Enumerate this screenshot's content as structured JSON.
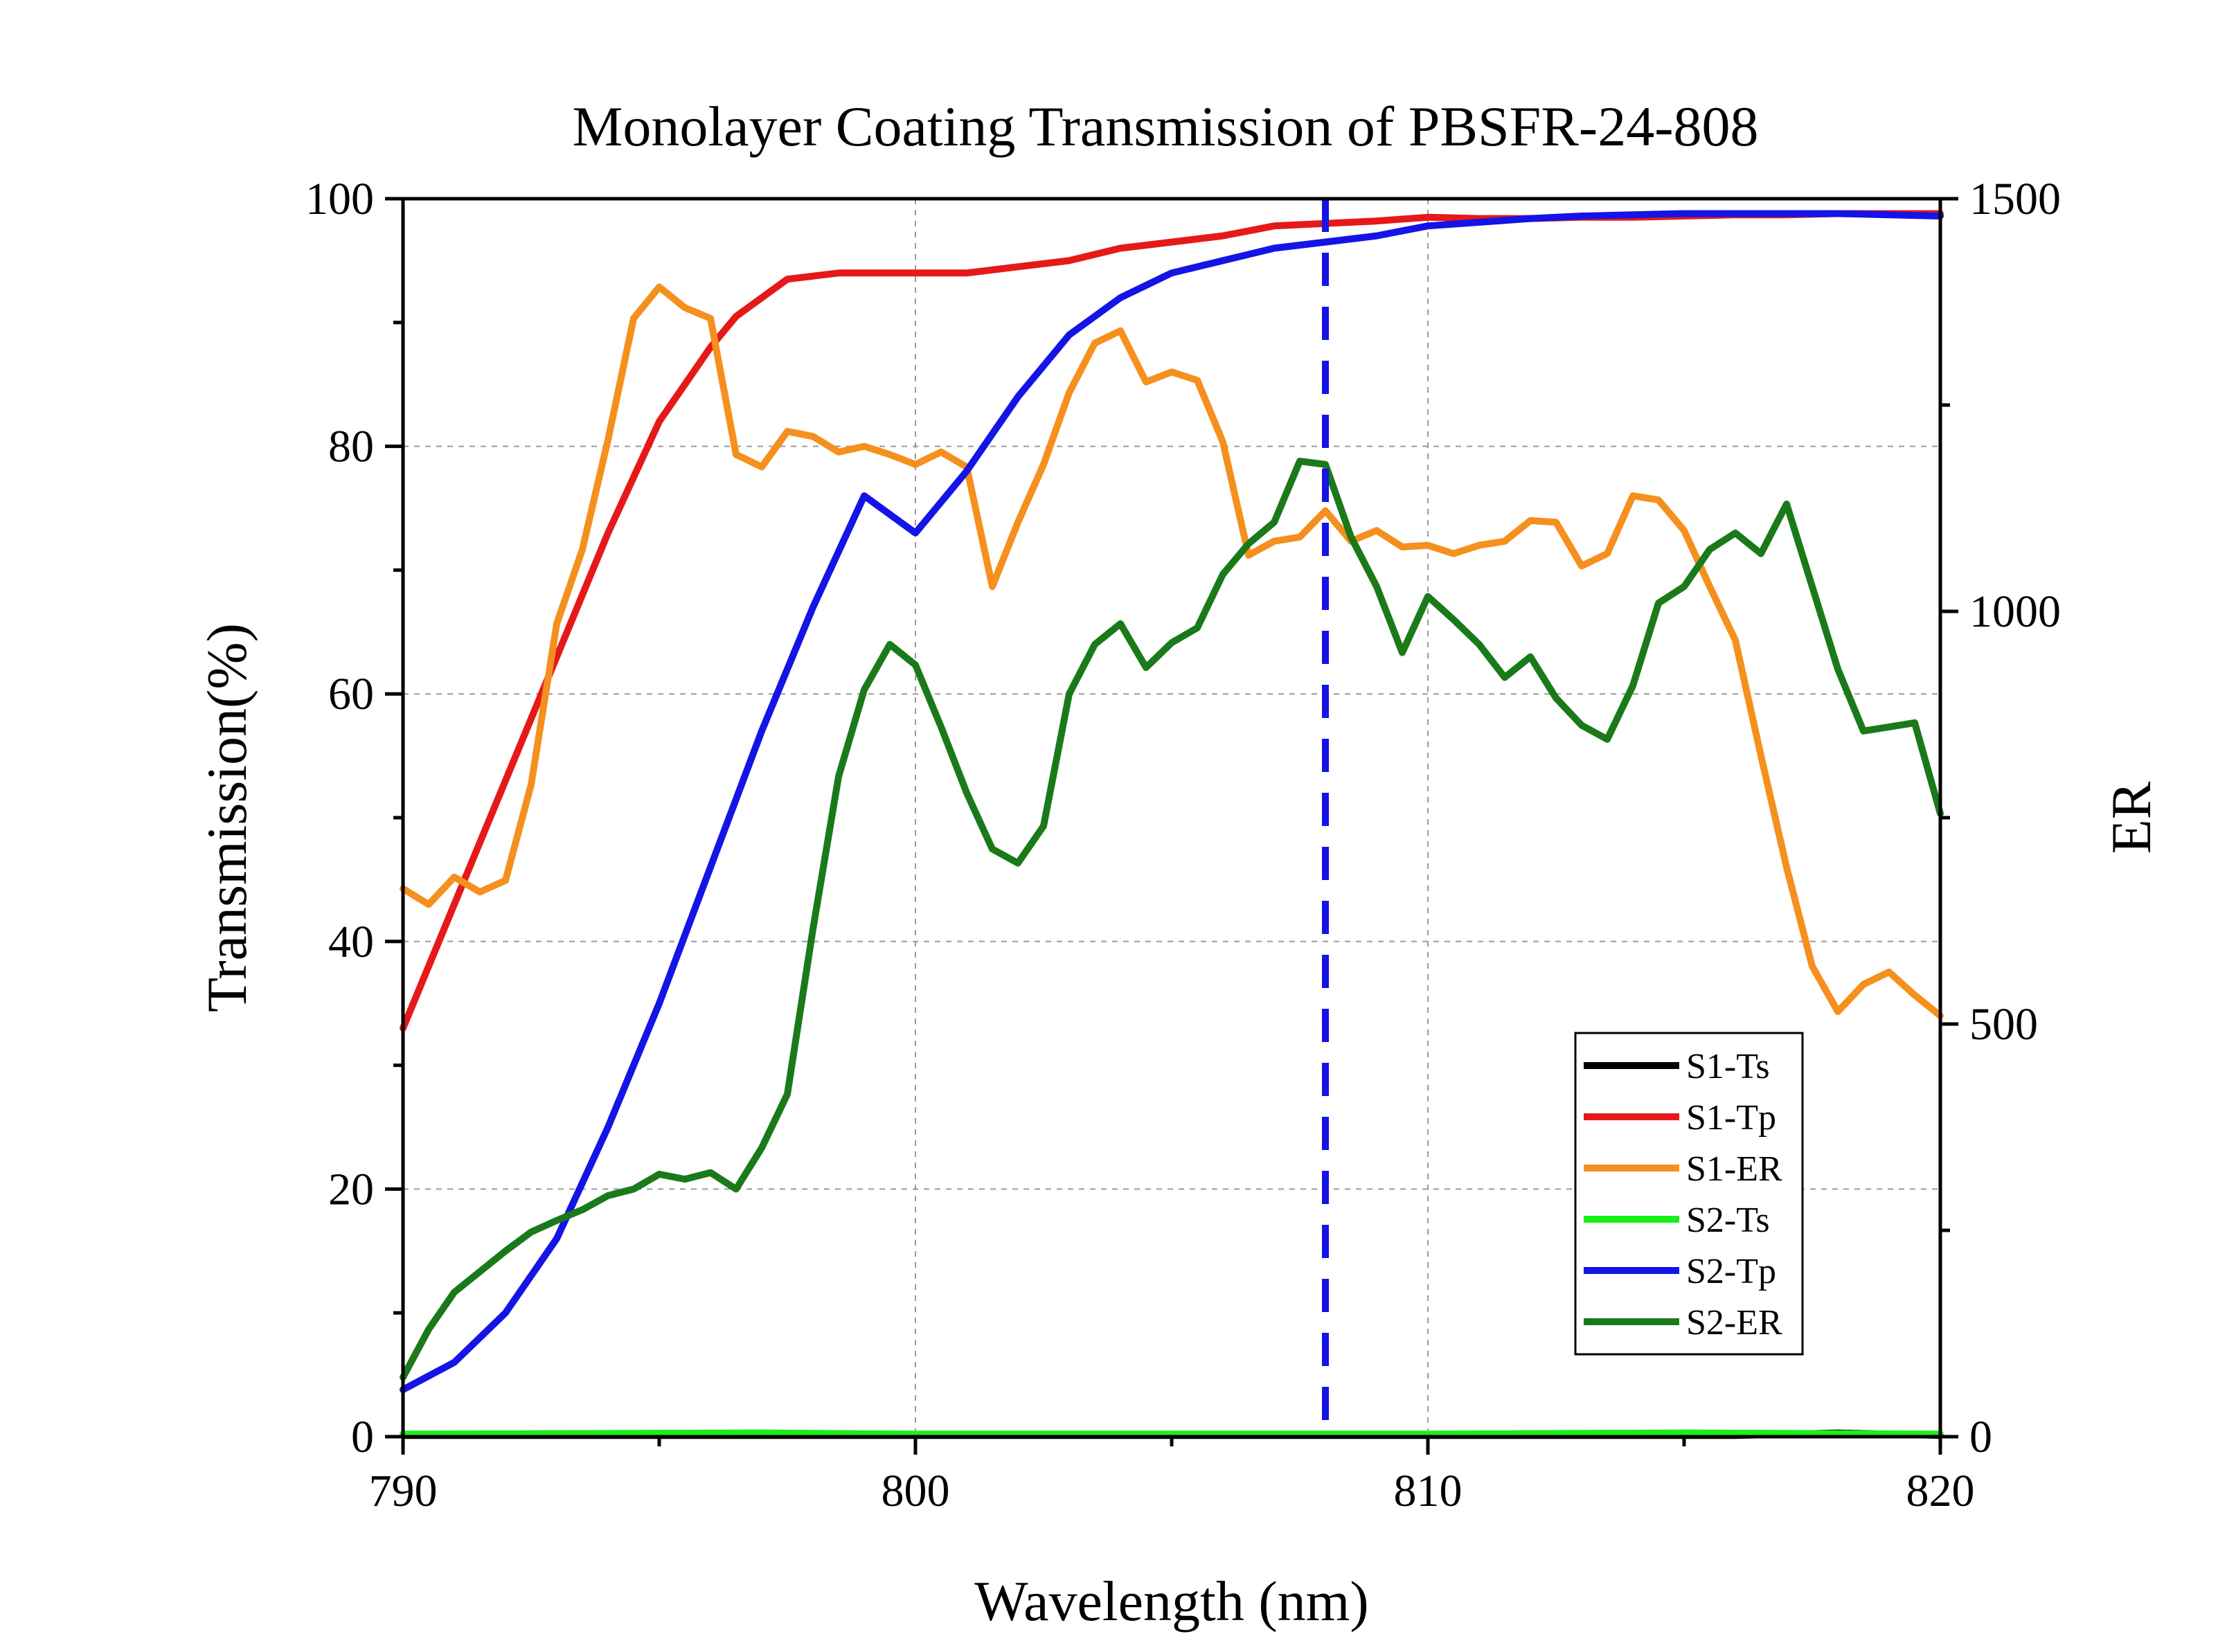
{
  "chart_data": {
    "type": "line",
    "title": "Monolayer Coating Transmission of PBSFR-24-808",
    "xlabel": "Wavelength (nm)",
    "ylabel_left": "Transmission(%)",
    "ylabel_right": "ER",
    "xlim": [
      790,
      820
    ],
    "ylim_left": [
      0,
      100
    ],
    "ylim_right": [
      0,
      1500
    ],
    "x_ticks": [
      "790",
      "800",
      "810",
      "820"
    ],
    "y_left_ticks": [
      "0",
      "20",
      "40",
      "60",
      "80",
      "100"
    ],
    "y_right_ticks": [
      "0",
      "500",
      "1000",
      "1500"
    ],
    "grid": true,
    "legend_position": "bottom-right",
    "vline": {
      "x": 808,
      "color": "#1414e6",
      "style": "dashed"
    },
    "series": [
      {
        "name": "S1-Ts",
        "axis": "left",
        "color": "#000000",
        "points": [
          [
            790,
            0.1
          ],
          [
            800,
            0.1
          ],
          [
            810,
            0.1
          ],
          [
            816,
            0.1
          ],
          [
            818,
            0.3
          ],
          [
            819,
            0.2
          ],
          [
            820,
            0.1
          ]
        ]
      },
      {
        "name": "S1-Tp",
        "axis": "left",
        "color": "#e61919",
        "points": [
          [
            790,
            33
          ],
          [
            791,
            43
          ],
          [
            792,
            53
          ],
          [
            793,
            63
          ],
          [
            794,
            73
          ],
          [
            795,
            82
          ],
          [
            796,
            88
          ],
          [
            796.5,
            90.5
          ],
          [
            797.5,
            93.5
          ],
          [
            798.5,
            94
          ],
          [
            799.5,
            94
          ],
          [
            801,
            94
          ],
          [
            802,
            94.5
          ],
          [
            803,
            95
          ],
          [
            804,
            96
          ],
          [
            805,
            96.5
          ],
          [
            806,
            97
          ],
          [
            807,
            97.8
          ],
          [
            808,
            98
          ],
          [
            809,
            98.2
          ],
          [
            810,
            98.5
          ],
          [
            811,
            98.4
          ],
          [
            812,
            98.4
          ],
          [
            813,
            98.5
          ],
          [
            814,
            98.5
          ],
          [
            815,
            98.6
          ],
          [
            816,
            98.7
          ],
          [
            817,
            98.7
          ],
          [
            818,
            98.8
          ],
          [
            819,
            98.8
          ],
          [
            820,
            98.8
          ]
        ]
      },
      {
        "name": "S1-ER",
        "axis": "right",
        "color": "#f5901e",
        "points": [
          [
            790,
            664
          ],
          [
            790.5,
            645
          ],
          [
            791,
            678
          ],
          [
            791.5,
            660
          ],
          [
            792,
            674
          ],
          [
            792.5,
            790
          ],
          [
            793,
            985
          ],
          [
            793.5,
            1075
          ],
          [
            794,
            1208
          ],
          [
            794.5,
            1355
          ],
          [
            795,
            1393
          ],
          [
            795.5,
            1368
          ],
          [
            796,
            1355
          ],
          [
            796.5,
            1190
          ],
          [
            797,
            1175
          ],
          [
            797.5,
            1218
          ],
          [
            798,
            1212
          ],
          [
            798.5,
            1193
          ],
          [
            799,
            1200
          ],
          [
            799.5,
            1190
          ],
          [
            800,
            1178
          ],
          [
            800.5,
            1193
          ],
          [
            801,
            1175
          ],
          [
            801.5,
            1030
          ],
          [
            802,
            1108
          ],
          [
            802.5,
            1178
          ],
          [
            803,
            1265
          ],
          [
            803.5,
            1325
          ],
          [
            804,
            1340
          ],
          [
            804.5,
            1278
          ],
          [
            805,
            1290
          ],
          [
            805.5,
            1280
          ],
          [
            806,
            1205
          ],
          [
            806.5,
            1068
          ],
          [
            807,
            1085
          ],
          [
            807.5,
            1090
          ],
          [
            808,
            1122
          ],
          [
            808.5,
            1085
          ],
          [
            809,
            1098
          ],
          [
            809.5,
            1078
          ],
          [
            810,
            1080
          ],
          [
            810.5,
            1070
          ],
          [
            811,
            1080
          ],
          [
            811.5,
            1085
          ],
          [
            812,
            1110
          ],
          [
            812.5,
            1108
          ],
          [
            813,
            1055
          ],
          [
            813.5,
            1070
          ],
          [
            814,
            1140
          ],
          [
            814.5,
            1135
          ],
          [
            815,
            1098
          ],
          [
            815.5,
            1030
          ],
          [
            816,
            965
          ],
          [
            816.5,
            825
          ],
          [
            817,
            690
          ],
          [
            817.5,
            570
          ],
          [
            818,
            515
          ],
          [
            818.5,
            548
          ],
          [
            819,
            563
          ],
          [
            819.5,
            535
          ],
          [
            820,
            510
          ]
        ]
      },
      {
        "name": "S2-Ts",
        "axis": "left",
        "color": "#19f019",
        "points": [
          [
            790,
            0.2
          ],
          [
            797,
            0.3
          ],
          [
            800,
            0.2
          ],
          [
            805,
            0.2
          ],
          [
            810,
            0.2
          ],
          [
            815,
            0.3
          ],
          [
            820,
            0.2
          ]
        ]
      },
      {
        "name": "S2-Tp",
        "axis": "left",
        "color": "#1414e6",
        "points": [
          [
            790,
            3.8
          ],
          [
            791,
            6
          ],
          [
            792,
            10
          ],
          [
            793,
            16
          ],
          [
            794,
            25
          ],
          [
            795,
            35
          ],
          [
            796,
            46
          ],
          [
            797,
            57
          ],
          [
            798,
            67
          ],
          [
            799,
            76
          ],
          [
            800,
            73
          ],
          [
            801,
            78
          ],
          [
            802,
            84
          ],
          [
            803,
            89
          ],
          [
            804,
            92
          ],
          [
            805,
            94
          ],
          [
            806,
            95
          ],
          [
            807,
            96
          ],
          [
            808,
            96.5
          ],
          [
            809,
            97
          ],
          [
            810,
            97.8
          ],
          [
            811,
            98.1
          ],
          [
            812,
            98.4
          ],
          [
            813,
            98.6
          ],
          [
            814,
            98.7
          ],
          [
            815,
            98.8
          ],
          [
            816,
            98.8
          ],
          [
            817,
            98.8
          ],
          [
            818,
            98.8
          ],
          [
            819,
            98.7
          ],
          [
            820,
            98.6
          ]
        ]
      },
      {
        "name": "S2-ER",
        "axis": "right",
        "color": "#1a7a1a",
        "points": [
          [
            790,
            72
          ],
          [
            790.5,
            130
          ],
          [
            791,
            175
          ],
          [
            791.5,
            200
          ],
          [
            792,
            225
          ],
          [
            792.5,
            248
          ],
          [
            793,
            262
          ],
          [
            793.5,
            275
          ],
          [
            794,
            292
          ],
          [
            794.5,
            300
          ],
          [
            795,
            318
          ],
          [
            795.5,
            312
          ],
          [
            796,
            320
          ],
          [
            796.5,
            300
          ],
          [
            797,
            350
          ],
          [
            797.5,
            415
          ],
          [
            798,
            615
          ],
          [
            798.5,
            800
          ],
          [
            799,
            905
          ],
          [
            799.5,
            960
          ],
          [
            800,
            935
          ],
          [
            800.5,
            860
          ],
          [
            801,
            780
          ],
          [
            801.5,
            712
          ],
          [
            802,
            695
          ],
          [
            802.5,
            740
          ],
          [
            803,
            900
          ],
          [
            803.5,
            960
          ],
          [
            804,
            985
          ],
          [
            804.5,
            932
          ],
          [
            805,
            962
          ],
          [
            805.5,
            980
          ],
          [
            806,
            1045
          ],
          [
            806.5,
            1082
          ],
          [
            807,
            1108
          ],
          [
            807.5,
            1182
          ],
          [
            808,
            1178
          ],
          [
            808.5,
            1090
          ],
          [
            809,
            1030
          ],
          [
            809.5,
            950
          ],
          [
            810,
            1018
          ],
          [
            810.5,
            990
          ],
          [
            811,
            960
          ],
          [
            811.5,
            920
          ],
          [
            812,
            945
          ],
          [
            812.5,
            895
          ],
          [
            813,
            862
          ],
          [
            813.5,
            845
          ],
          [
            814,
            910
          ],
          [
            814.5,
            1010
          ],
          [
            815,
            1030
          ],
          [
            815.5,
            1075
          ],
          [
            816,
            1095
          ],
          [
            816.5,
            1070
          ],
          [
            817,
            1130
          ],
          [
            817.5,
            1030
          ],
          [
            818,
            930
          ],
          [
            818.5,
            855
          ],
          [
            819,
            860
          ],
          [
            819.5,
            865
          ],
          [
            820,
            755
          ]
        ]
      }
    ]
  }
}
